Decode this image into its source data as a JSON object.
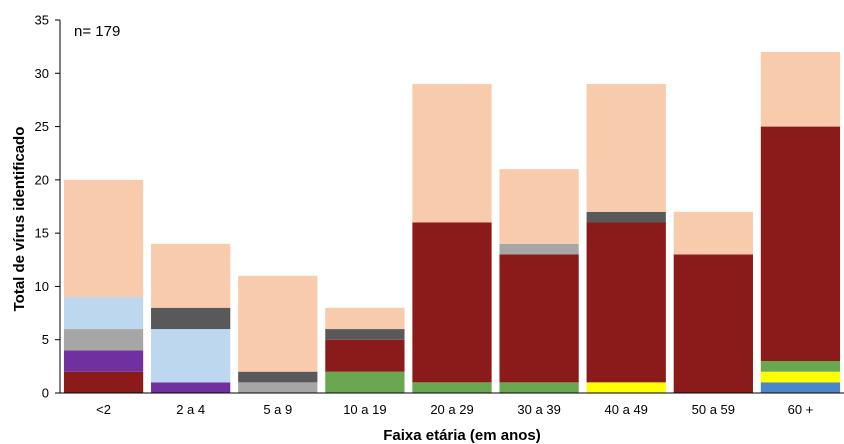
{
  "chart_data": {
    "type": "bar",
    "stacked": true,
    "annotation": "n= 179",
    "xlabel": "Faixa etária (em anos)",
    "ylabel": "Total de vírus identificado",
    "ylim": [
      0,
      35
    ],
    "yticks": [
      0,
      5,
      10,
      15,
      20,
      25,
      30,
      35
    ],
    "grid": false,
    "legend": "none",
    "categories": [
      "<2",
      "2 a 4",
      "5 a 9",
      "10 a 19",
      "20 a 29",
      "30 a 39",
      "40 a 49",
      "50 a 59",
      "60 +"
    ],
    "series": [
      {
        "color": "#4a86c8",
        "values": [
          0,
          0,
          0,
          0,
          0,
          0,
          0,
          0,
          1
        ]
      },
      {
        "color": "#ffff00",
        "values": [
          0,
          0,
          0,
          0,
          0,
          0,
          1,
          0,
          1
        ]
      },
      {
        "color": "#6aa84f",
        "values": [
          0,
          0,
          0,
          2,
          1,
          1,
          0,
          0,
          1
        ]
      },
      {
        "color": "#8b1a1a",
        "values": [
          2,
          0,
          0,
          3,
          15,
          12,
          15,
          13,
          22
        ]
      },
      {
        "color": "#7030a0",
        "values": [
          2,
          1,
          0,
          0,
          0,
          0,
          0,
          0,
          0
        ]
      },
      {
        "color": "#a6a6a6",
        "values": [
          2,
          0,
          1,
          0,
          0,
          1,
          0,
          0,
          0
        ]
      },
      {
        "color": "#bdd7ee",
        "values": [
          3,
          5,
          0,
          0,
          0,
          0,
          0,
          0,
          0
        ]
      },
      {
        "color": "#595959",
        "values": [
          0,
          2,
          1,
          1,
          0,
          0,
          1,
          0,
          0
        ]
      },
      {
        "color": "#f8cbad",
        "values": [
          11,
          6,
          9,
          2,
          13,
          7,
          12,
          4,
          7
        ]
      }
    ]
  }
}
